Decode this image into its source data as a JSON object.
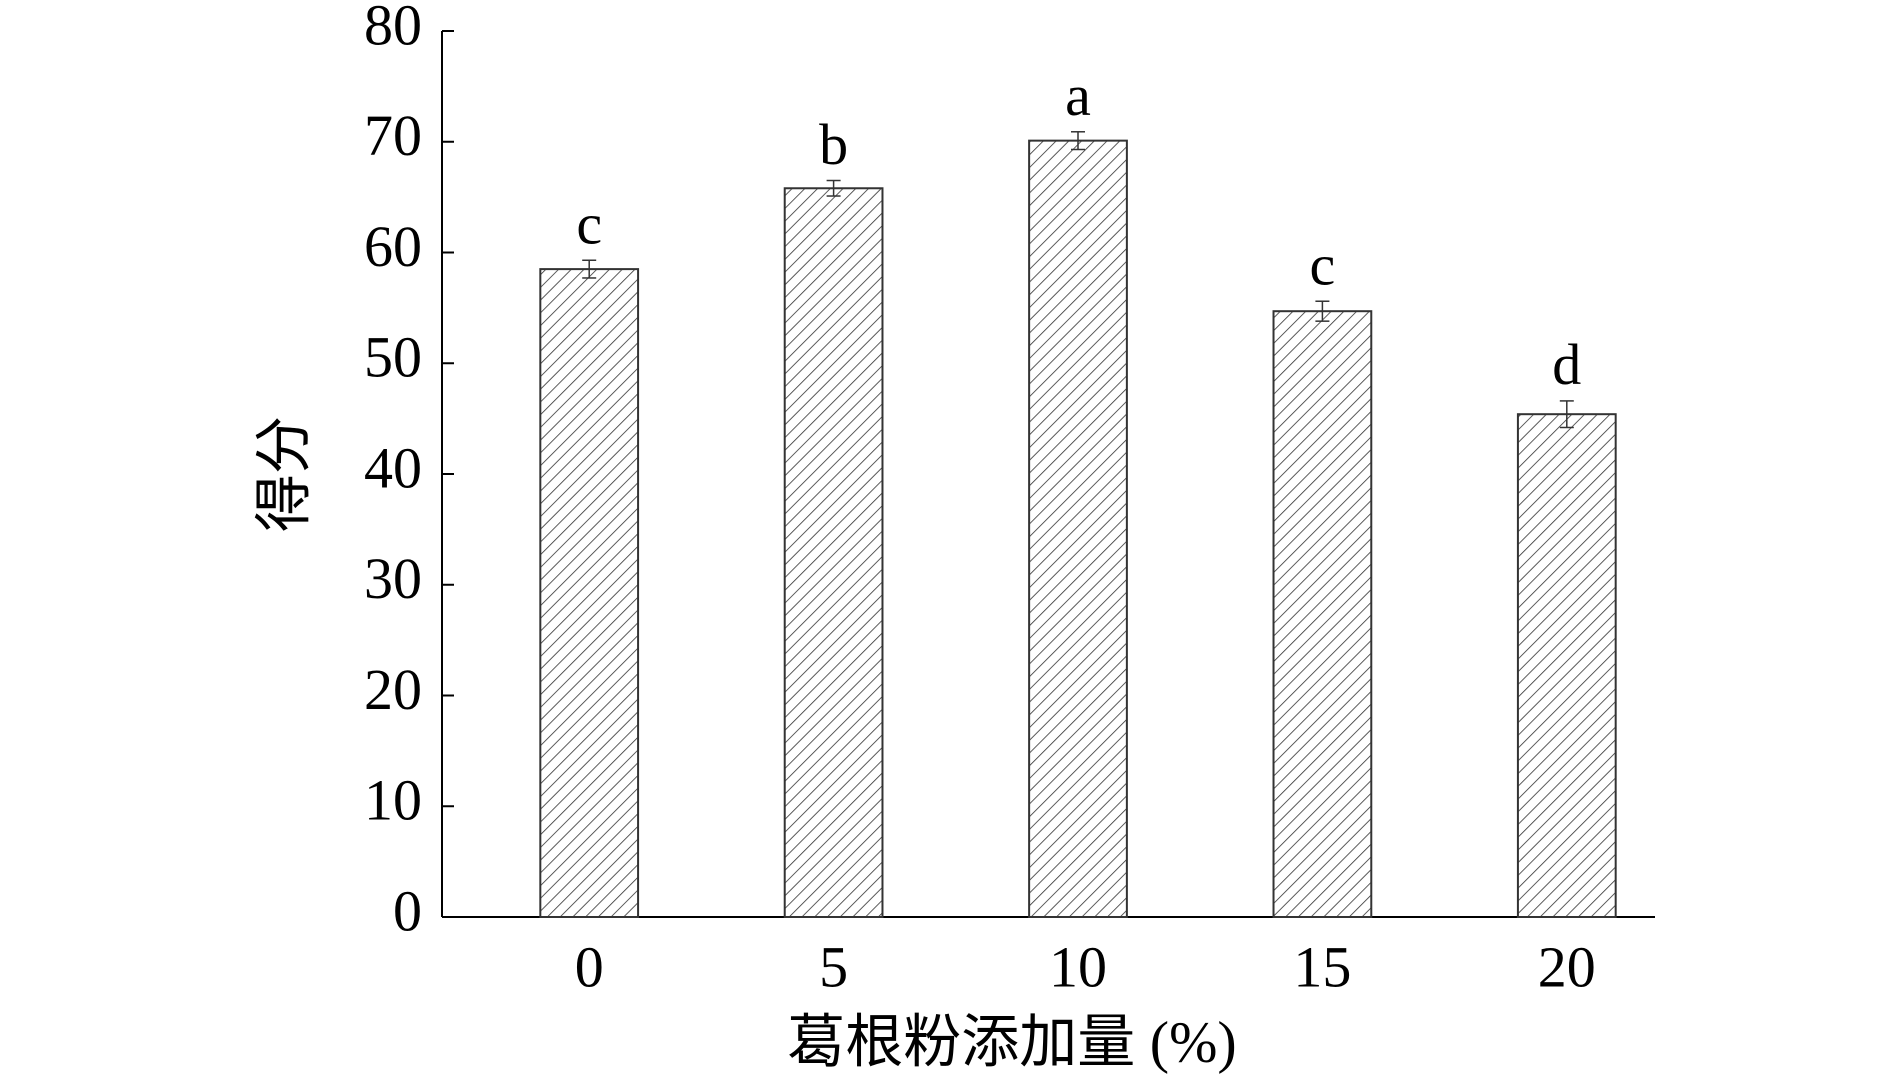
{
  "chart_data": {
    "type": "bar",
    "categories": [
      "0",
      "5",
      "10",
      "15",
      "20"
    ],
    "values": [
      58.5,
      65.8,
      70.1,
      54.7,
      45.4
    ],
    "errors": [
      0.8,
      0.7,
      0.8,
      0.9,
      1.2
    ],
    "annotations": [
      "c",
      "b",
      "a",
      "c",
      "d"
    ],
    "color": "#333333",
    "ylim": [
      0,
      80
    ],
    "yticks": [
      0,
      10,
      20,
      30,
      40,
      50,
      60,
      70,
      80
    ],
    "x_label": "葛根粉添加量 (%)",
    "y_label": "得分",
    "grid": false
  }
}
